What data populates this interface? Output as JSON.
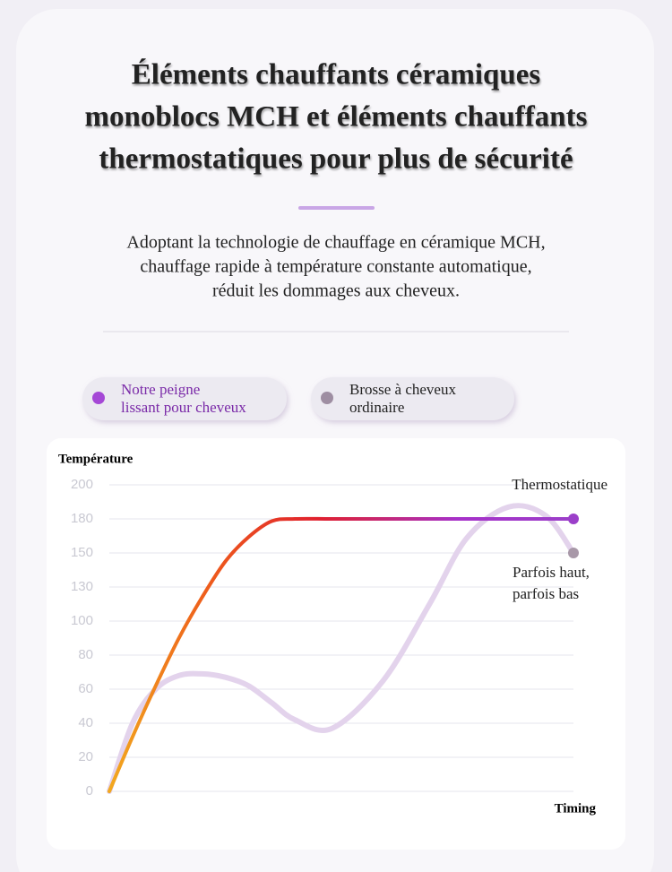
{
  "title_lines": [
    "Éléments chauffants céramiques",
    "monoblocs MCH et éléments chauffants",
    "thermostatiques pour plus de sécurité"
  ],
  "subtitle_lines": [
    "Adoptant la technologie de chauffage en céramique MCH,",
    "chauffage rapide à température constante automatique,",
    "réduit les dommages aux cheveux."
  ],
  "chart_data": {
    "type": "line",
    "y_label": "Température",
    "x_label": "Timing",
    "x": [
      0,
      5,
      10,
      15,
      20,
      25,
      30,
      35,
      40,
      48,
      59,
      69,
      77,
      86,
      94,
      100
    ],
    "xlim": [
      0,
      100
    ],
    "series": [
      {
        "name": "Notre peigne lissant pour cheveux",
        "color": "#9b3fc9",
        "annotation": [
          "Thermostatique"
        ],
        "values": [
          0,
          32,
          62,
          90,
          121,
          145,
          164,
          178,
          180,
          180,
          180,
          180,
          180,
          180,
          180,
          180
        ]
      },
      {
        "name": "Brosse à cheveux ordinaire",
        "color": "#e3d3ec",
        "annotation": [
          "Parfois haut,",
          "parfois bas"
        ],
        "values": [
          0,
          40,
          60,
          68,
          69,
          67,
          62,
          52,
          42,
          37,
          65,
          115,
          163,
          187,
          182,
          150
        ]
      }
    ],
    "ylim": [
      0,
      200
    ],
    "yticks": [
      0,
      20,
      40,
      60,
      80,
      100,
      130,
      150,
      180,
      200
    ],
    "grid": true
  }
}
